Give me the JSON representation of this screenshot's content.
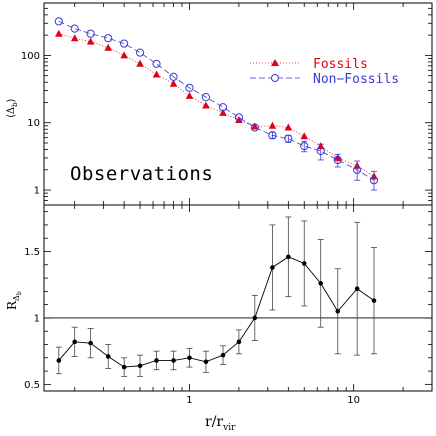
{
  "chart_data": [
    {
      "panel": "top",
      "type": "scatter",
      "ylabel": "⟨Δ_b⟩",
      "ylabel_main": "⟨Δ",
      "ylabel_sub": "b",
      "ylabel_close": "⟩",
      "xscale": "log",
      "yscale": "log",
      "xlim": [
        0.13,
        30
      ],
      "ylim": [
        0.6,
        600
      ],
      "yticks": [
        1,
        10,
        100
      ],
      "yticklabels": [
        "1",
        "10",
        "100"
      ],
      "annotation": "Observations",
      "legend_position": "top-right",
      "series": [
        {
          "name": "Fossils",
          "marker": "triangle",
          "color": "#e0001a",
          "x": [
            0.16,
            0.2,
            0.25,
            0.32,
            0.4,
            0.5,
            0.63,
            0.8,
            1.0,
            1.26,
            1.6,
            2.0,
            2.5,
            3.2,
            4.0,
            5.0,
            6.3,
            8.0,
            10.5,
            13.3
          ],
          "y": [
            210,
            180,
            160,
            130,
            100,
            75,
            52,
            38,
            25,
            18,
            14,
            11,
            8.8,
            9.0,
            8.5,
            6.3,
            4.5,
            3.0,
            2.3,
            1.6
          ]
        },
        {
          "name": "Non−Fossils",
          "marker": "open-circle",
          "color": "#3a3ad6",
          "x": [
            0.16,
            0.2,
            0.25,
            0.32,
            0.4,
            0.5,
            0.63,
            0.8,
            1.0,
            1.26,
            1.6,
            2.0,
            2.5,
            3.2,
            4.0,
            5.0,
            6.3,
            8.0,
            10.5,
            13.3
          ],
          "y": [
            320,
            250,
            210,
            180,
            150,
            110,
            75,
            48,
            33,
            24,
            17,
            12,
            8.5,
            6.5,
            5.8,
            4.5,
            3.8,
            2.8,
            2.0,
            1.4
          ],
          "yerr_low": [
            0,
            0,
            0,
            0,
            0,
            0,
            0,
            0,
            0,
            0,
            0,
            0,
            0,
            0.7,
            0.7,
            0.8,
            1.0,
            0.6,
            0.6,
            0.4
          ],
          "yerr_high": [
            0,
            0,
            0,
            0,
            0,
            0,
            0,
            0,
            0,
            0,
            0,
            0,
            0,
            0.7,
            0.7,
            0.8,
            1.0,
            0.6,
            0.7,
            0.5
          ]
        }
      ]
    },
    {
      "panel": "bottom",
      "type": "line",
      "xlabel": "r/r_vir",
      "xlabel_main": "r/r",
      "xlabel_sub": "vir",
      "ylabel": "R_Δ_b",
      "ylabel_main": "R",
      "ylabel_sub": "Δ",
      "ylabel_subsub": "b",
      "xscale": "log",
      "xlim": [
        0.13,
        30
      ],
      "ylim": [
        0.45,
        1.85
      ],
      "xticks": [
        1,
        10
      ],
      "xticklabels": [
        "1",
        "10"
      ],
      "yticks": [
        0.5,
        1,
        1.5
      ],
      "yticklabels": [
        "0.5",
        "1",
        "1.5"
      ],
      "reference_line": 1,
      "series": [
        {
          "marker": "filled-circle",
          "color": "#000000",
          "x": [
            0.16,
            0.2,
            0.25,
            0.32,
            0.4,
            0.5,
            0.63,
            0.8,
            1.0,
            1.26,
            1.6,
            2.0,
            2.5,
            3.2,
            4.0,
            5.0,
            6.3,
            8.0,
            10.5,
            13.3
          ],
          "y": [
            0.68,
            0.82,
            0.81,
            0.71,
            0.63,
            0.64,
            0.68,
            0.68,
            0.7,
            0.67,
            0.72,
            0.82,
            1.0,
            1.38,
            1.46,
            1.41,
            1.26,
            1.05,
            1.22,
            1.13
          ],
          "yerr": [
            0.1,
            0.11,
            0.11,
            0.09,
            0.07,
            0.08,
            0.07,
            0.07,
            0.07,
            0.08,
            0.07,
            0.09,
            0.17,
            0.32,
            0.3,
            0.32,
            0.33,
            0.32,
            0.5,
            0.4
          ]
        }
      ]
    }
  ]
}
